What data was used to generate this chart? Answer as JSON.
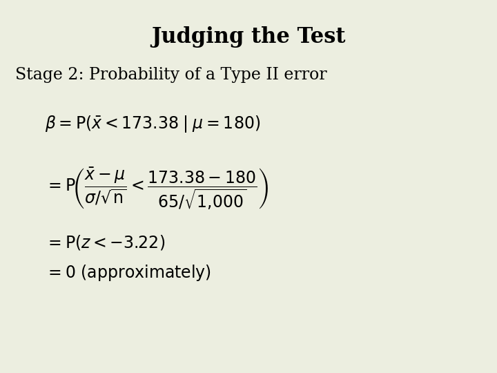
{
  "title": "Judging the Test",
  "subtitle": "Stage 2: Probability of a Type II error",
  "background_color": "#eceee0",
  "title_fontsize": 22,
  "subtitle_fontsize": 17,
  "math_fontsize": 17,
  "title_color": "#000000",
  "text_color": "#000000"
}
